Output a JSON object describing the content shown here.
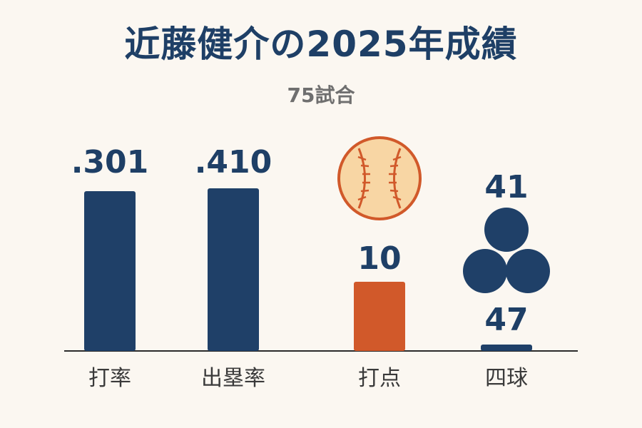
{
  "title": "近藤健介の2025年成績",
  "subtitle": "75試合",
  "colors": {
    "navy": "#1f4068",
    "orange": "#d1592a",
    "ball_fill": "#f8d6a4"
  },
  "chart_data": {
    "type": "bar",
    "title": "近藤健介の2025年成績",
    "subtitle": "75試合",
    "categories": [
      "打率",
      "出塁率",
      "打点",
      "四球"
    ],
    "values": [
      0.301,
      0.41,
      10,
      47
    ],
    "value_labels": [
      ".301",
      ".410",
      "10",
      "47"
    ],
    "extra_label": "41",
    "icons": [
      "baseball-icon",
      "three-balls-icon"
    ],
    "bar_colors": [
      "#1f4068",
      "#1f4068",
      "#d1592a",
      "#1f4068"
    ]
  }
}
